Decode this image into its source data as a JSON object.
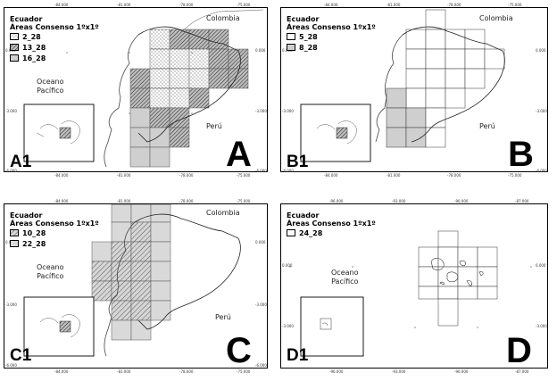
{
  "panels": [
    {
      "id": "A",
      "legend_title_1": "Ecuador",
      "legend_title_2": "Áreas Consenso 1ºx1º",
      "legend_items": [
        {
          "label": "2_28",
          "pattern": "dots"
        },
        {
          "label": "13_28",
          "pattern": "hatch-dense"
        },
        {
          "label": "16_28",
          "pattern": "gray-light"
        }
      ],
      "top_ticks": [
        "-84.000",
        "-81.000",
        "-78.000",
        "-75.000"
      ],
      "bottom_ticks": [
        "-84.000",
        "-81.000",
        "-78.000",
        "-75.000"
      ],
      "left_ticks": [
        "0.000",
        "-3.000",
        "-6.000"
      ],
      "right_ticks": [
        "0.000",
        "-3.000",
        "-6.000"
      ],
      "ocean_label_1": "Oceano",
      "ocean_label_2": "Pacífico",
      "country_north": "Colombia",
      "country_south": "Perú",
      "inset_label": "A1",
      "panel_letter": "A"
    },
    {
      "id": "B",
      "legend_title_1": "Ecuador",
      "legend_title_2": "Áreas Consenso 1ºx1º",
      "legend_items": [
        {
          "label": "5_28",
          "pattern": "white"
        },
        {
          "label": "8_28",
          "pattern": "gray-light"
        }
      ],
      "top_ticks": [
        "-84.000",
        "-81.000",
        "-78.000",
        "-75.000"
      ],
      "bottom_ticks": [
        "-84.000",
        "-81.000",
        "-78.000",
        "-75.000"
      ],
      "left_ticks": [
        "0.000",
        "-3.000",
        "-6.000"
      ],
      "right_ticks": [
        "0.000",
        "-3.000",
        "-6.000"
      ],
      "ocean_label_1": "",
      "ocean_label_2": "",
      "country_north": "Colombia",
      "country_south": "Perú",
      "inset_label": "B1",
      "panel_letter": "B"
    },
    {
      "id": "C",
      "legend_title_1": "Ecuador",
      "legend_title_2": "Áreas Consenso 1ºx1º",
      "legend_items": [
        {
          "label": "10_28",
          "pattern": "hatch"
        },
        {
          "label": "22_28",
          "pattern": "gray-light"
        }
      ],
      "top_ticks": [
        "-84.000",
        "-81.000",
        "-78.000",
        "-75.000"
      ],
      "bottom_ticks": [
        "-84.000",
        "-81.000",
        "-78.000",
        "-75.000"
      ],
      "left_ticks": [
        "0.000",
        "-3.000",
        "-6.000"
      ],
      "right_ticks": [
        "0.000",
        "-3.000",
        "-6.000"
      ],
      "ocean_label_1": "Oceano",
      "ocean_label_2": "Pacífico",
      "country_north": "Colombia",
      "country_south": "Perú",
      "inset_label": "C1",
      "panel_letter": "C"
    },
    {
      "id": "D",
      "legend_title_1": "Ecuador",
      "legend_title_2": "Áreas Consenso 1ºx1º",
      "legend_items": [
        {
          "label": "24_28",
          "pattern": "white"
        }
      ],
      "top_ticks": [
        "-96.000",
        "-93.000",
        "-90.000",
        "-87.000"
      ],
      "bottom_ticks": [
        "-96.000",
        "-93.000",
        "-90.000",
        "-87.000"
      ],
      "left_ticks": [
        "0.000",
        "-3.000"
      ],
      "right_ticks": [
        "0.000",
        "-3.000"
      ],
      "ocean_label_1": "Oceano",
      "ocean_label_2": "Pacífico",
      "country_north": "",
      "country_south": "",
      "inset_label": "D1",
      "panel_letter": "D"
    }
  ]
}
